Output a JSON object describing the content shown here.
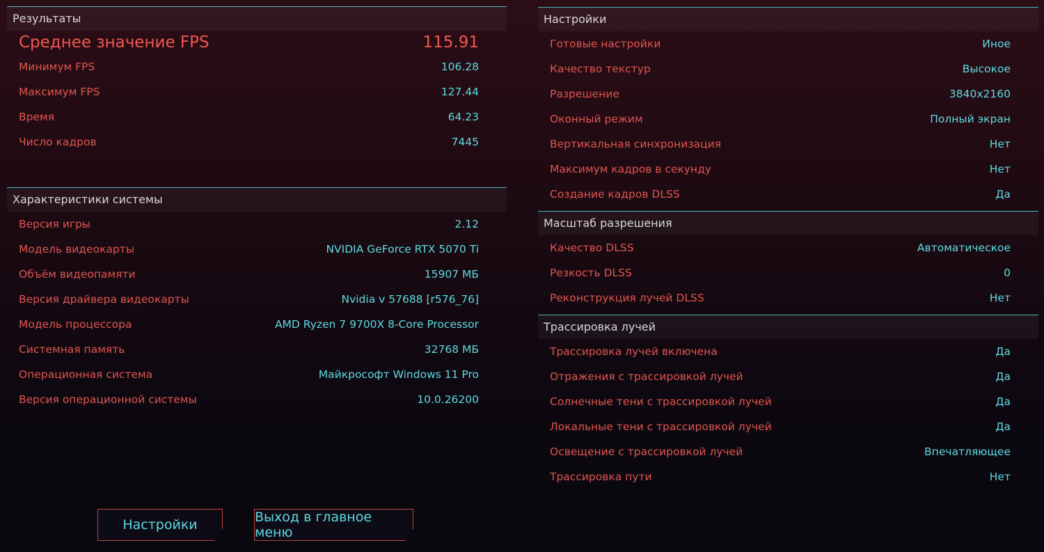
{
  "results": {
    "title": "Результаты",
    "rows": [
      {
        "label": "Среднее значение FPS",
        "value": "115.91"
      },
      {
        "label": "Минимум FPS",
        "value": "106.28"
      },
      {
        "label": "Максимум FPS",
        "value": "127.44"
      },
      {
        "label": "Время",
        "value": "64.23"
      },
      {
        "label": "Число кадров",
        "value": "7445"
      }
    ]
  },
  "system": {
    "title": "Характеристики системы",
    "rows": [
      {
        "label": "Версия игры",
        "value": "2.12"
      },
      {
        "label": "Модель видеокарты",
        "value": "NVIDIA GeForce RTX 5070 Ti"
      },
      {
        "label": "Объём видеопамяти",
        "value": "15907 МБ"
      },
      {
        "label": "Версия драйвера видеокарты",
        "value": "Nvidia v 57688 [r576_76]"
      },
      {
        "label": "Модель процессора",
        "value": "AMD Ryzen 7 9700X 8-Core Processor"
      },
      {
        "label": "Системная память",
        "value": "32768 МБ"
      },
      {
        "label": "Операционная система",
        "value": "Майкрософт Windows 11 Pro"
      },
      {
        "label": "Версия операционной системы",
        "value": "10.0.26200"
      }
    ]
  },
  "settings": {
    "title": "Настройки",
    "rows": [
      {
        "label": "Готовые настройки",
        "value": "Иное"
      },
      {
        "label": "Качество текстур",
        "value": "Высокое"
      },
      {
        "label": "Разрешение",
        "value": "3840x2160"
      },
      {
        "label": "Оконный режим",
        "value": "Полный экран"
      },
      {
        "label": "Вертикальная синхронизация",
        "value": "Нет"
      },
      {
        "label": "Максимум кадров в секунду",
        "value": "Нет"
      },
      {
        "label": "Создание кадров DLSS",
        "value": "Да"
      }
    ]
  },
  "scaling": {
    "title": "Масштаб разрешения",
    "rows": [
      {
        "label": "Качество DLSS",
        "value": "Автоматическое"
      },
      {
        "label": "Резкость DLSS",
        "value": "0"
      },
      {
        "label": "Реконструкция лучей DLSS",
        "value": "Нет"
      }
    ]
  },
  "raytracing": {
    "title": "Трассировка лучей",
    "rows": [
      {
        "label": "Трассировка лучей включена",
        "value": "Да"
      },
      {
        "label": "Отражения с трассировкой лучей",
        "value": "Да"
      },
      {
        "label": "Солнечные тени с трассировкой лучей",
        "value": "Да"
      },
      {
        "label": "Локальные тени с трассировкой лучей",
        "value": "Да"
      },
      {
        "label": "Освещение с трассировкой лучей",
        "value": "Впечатляющее"
      },
      {
        "label": "Трассировка пути",
        "value": "Нет"
      }
    ]
  },
  "buttons": {
    "settings": "Настройки",
    "exit": "Выход в главное меню"
  },
  "colors": {
    "label": "#e0554f",
    "value": "#5fd9e2",
    "accent_line": "#4fb3bd"
  }
}
